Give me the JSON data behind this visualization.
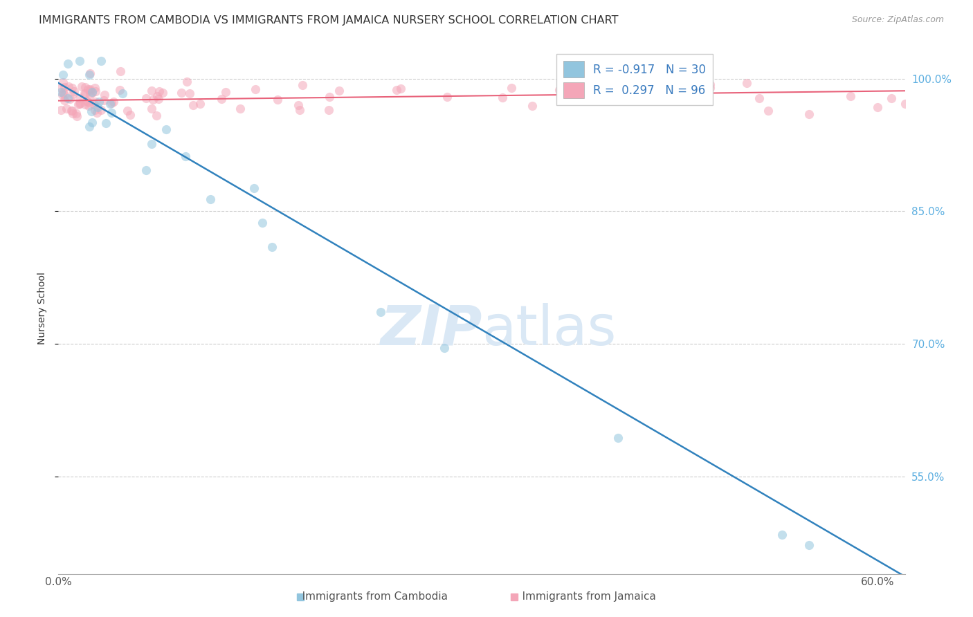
{
  "title": "IMMIGRANTS FROM CAMBODIA VS IMMIGRANTS FROM JAMAICA NURSERY SCHOOL CORRELATION CHART",
  "source": "Source: ZipAtlas.com",
  "ylabel": "Nursery School",
  "xlim": [
    0.0,
    0.62
  ],
  "ylim": [
    0.44,
    1.04
  ],
  "cambodia_R": -0.917,
  "cambodia_N": 30,
  "jamaica_R": 0.297,
  "jamaica_N": 96,
  "cambodia_color": "#92c5de",
  "cambodia_line_color": "#3182bd",
  "jamaica_color": "#f4a6b8",
  "jamaica_line_color": "#e8627a",
  "watermark_color": "#dae8f5",
  "grid_color": "#cccccc",
  "background_color": "#ffffff",
  "title_fontsize": 11.5,
  "tick_label_color_right": "#5baee0",
  "scatter_alpha": 0.55,
  "scatter_size": 90,
  "right_ytick_labels": [
    "55.0%",
    "70.0%",
    "85.0%",
    "100.0%"
  ],
  "right_ytick_values": [
    0.55,
    0.7,
    0.85,
    1.0
  ],
  "legend_label_color": "#3a7bbf",
  "bottom_label_cam": "Immigrants from Cambodia",
  "bottom_label_jam": "Immigrants from Jamaica"
}
